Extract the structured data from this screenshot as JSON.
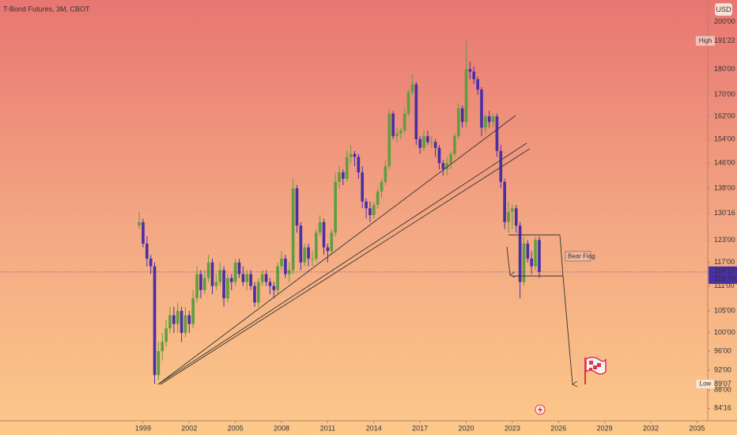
{
  "chart_data": {
    "type": "candlestick",
    "title": "T-Bond Futures, 3M, CBOT",
    "currency": "USD",
    "annotation": "Bear Flag",
    "log_scale": true,
    "colors": {
      "up": "#5f9e3f",
      "down": "#4a2ea6"
    },
    "xlim": [
      1989.7,
      2035.7
    ],
    "xticks": [
      1999,
      2002,
      2005,
      2008,
      2011,
      2014,
      2017,
      2020,
      2023,
      2026,
      2029,
      2032,
      2035
    ],
    "ylim": [
      82.2,
      210
    ],
    "yticks": [
      {
        "value": 200,
        "label": "200'00"
      },
      {
        "value": 180,
        "label": "180'00"
      },
      {
        "value": 170,
        "label": "170'00"
      },
      {
        "value": 162,
        "label": "162'00"
      },
      {
        "value": 154,
        "label": "154'00"
      },
      {
        "value": 146,
        "label": "146'00"
      },
      {
        "value": 138,
        "label": "138'00"
      },
      {
        "value": 130.5,
        "label": "130'16"
      },
      {
        "value": 123,
        "label": "123'00"
      },
      {
        "value": 117,
        "label": "117'00"
      },
      {
        "value": 111,
        "label": "111'00"
      },
      {
        "value": 105,
        "label": "105'00"
      },
      {
        "value": 100,
        "label": "100'00"
      },
      {
        "value": 96,
        "label": "96'00"
      },
      {
        "value": 92,
        "label": "92'00"
      },
      {
        "value": 88,
        "label": "88'00"
      },
      {
        "value": 84.5,
        "label": "84'16"
      }
    ],
    "high": {
      "label": "High",
      "price": {
        "value": 191.6875,
        "label": "191'22"
      }
    },
    "low": {
      "label": "Low",
      "price": {
        "value": 89.21875,
        "label": "89'07"
      }
    },
    "last": {
      "price": {
        "value": 114.53125,
        "label": "114'17"
      },
      "countdown": "11d 7h"
    },
    "x": [
      1998.75,
      1999,
      1999.25,
      1999.5,
      1999.75,
      2000,
      2000.25,
      2000.5,
      2000.75,
      2001,
      2001.25,
      2001.5,
      2001.75,
      2002,
      2002.25,
      2002.5,
      2002.75,
      2003,
      2003.25,
      2003.5,
      2003.75,
      2004,
      2004.25,
      2004.5,
      2004.75,
      2005,
      2005.25,
      2005.5,
      2005.75,
      2006,
      2006.25,
      2006.5,
      2006.75,
      2007,
      2007.25,
      2007.5,
      2007.75,
      2008,
      2008.25,
      2008.5,
      2008.75,
      2009,
      2009.25,
      2009.5,
      2009.75,
      2010,
      2010.25,
      2010.5,
      2010.75,
      2011,
      2011.25,
      2011.5,
      2011.75,
      2012,
      2012.25,
      2012.5,
      2012.75,
      2013,
      2013.25,
      2013.5,
      2013.75,
      2014,
      2014.25,
      2014.5,
      2014.75,
      2015,
      2015.25,
      2015.5,
      2015.75,
      2016,
      2016.25,
      2016.5,
      2016.75,
      2017,
      2017.25,
      2017.5,
      2017.75,
      2018,
      2018.25,
      2018.5,
      2018.75,
      2019,
      2019.25,
      2019.5,
      2019.75,
      2020,
      2020.25,
      2020.5,
      2020.75,
      2021,
      2021.25,
      2021.5,
      2021.75,
      2022,
      2022.25,
      2022.5,
      2022.75,
      2023,
      2023.25,
      2023.5,
      2023.75,
      2024,
      2024.25,
      2024.5,
      2024.75
    ],
    "ohlc": [
      [
        127,
        131,
        126,
        128
      ],
      [
        128,
        129,
        121,
        122
      ],
      [
        122,
        124,
        116,
        118
      ],
      [
        118,
        119,
        114,
        116
      ],
      [
        116,
        117,
        89.21875,
        91
      ],
      [
        91,
        98,
        90,
        96
      ],
      [
        96,
        100,
        94,
        98
      ],
      [
        98,
        103,
        97,
        101
      ],
      [
        101,
        106,
        100,
        104
      ],
      [
        104,
        106,
        100,
        102
      ],
      [
        102,
        107,
        100,
        105
      ],
      [
        105,
        106,
        98,
        100
      ],
      [
        100,
        106,
        99,
        104
      ],
      [
        104,
        105,
        100,
        102
      ],
      [
        102,
        110,
        101,
        108
      ],
      [
        108,
        116,
        107,
        114
      ],
      [
        114,
        115,
        108,
        110
      ],
      [
        110,
        115,
        109,
        113
      ],
      [
        113,
        119,
        112,
        117
      ],
      [
        117,
        118,
        109,
        111
      ],
      [
        111,
        114,
        110,
        112
      ],
      [
        112,
        117,
        111,
        115
      ],
      [
        115,
        116,
        106,
        108
      ],
      [
        108,
        114,
        107,
        113
      ],
      [
        113,
        114,
        110,
        112
      ],
      [
        112,
        118,
        111,
        117
      ],
      [
        117,
        118,
        113,
        114
      ],
      [
        114,
        116,
        111,
        112
      ],
      [
        112,
        115,
        110,
        114
      ],
      [
        114,
        115,
        110,
        111
      ],
      [
        111,
        112,
        106,
        107
      ],
      [
        107,
        113,
        106,
        112
      ],
      [
        112,
        115,
        111,
        114
      ],
      [
        114,
        115,
        111,
        112
      ],
      [
        112,
        113,
        109,
        111
      ],
      [
        111,
        112,
        108,
        110
      ],
      [
        110,
        117,
        109,
        116
      ],
      [
        116,
        120,
        115,
        118
      ],
      [
        118,
        119,
        113,
        114
      ],
      [
        114,
        117,
        112,
        115
      ],
      [
        115,
        141,
        114,
        138
      ],
      [
        138,
        139,
        125,
        127
      ],
      [
        127,
        128,
        115,
        117
      ],
      [
        117,
        122,
        116,
        121
      ],
      [
        121,
        122,
        116,
        118
      ],
      [
        118,
        120,
        116,
        118
      ],
      [
        118,
        126,
        117,
        125
      ],
      [
        125,
        130,
        124,
        128
      ],
      [
        128,
        129,
        119,
        121
      ],
      [
        121,
        122,
        117,
        120
      ],
      [
        120,
        126,
        119,
        125
      ],
      [
        125,
        143,
        124,
        140
      ],
      [
        140,
        145,
        138,
        143
      ],
      [
        143,
        144,
        139,
        141
      ],
      [
        141,
        150,
        140,
        148
      ],
      [
        148,
        152,
        146,
        149
      ],
      [
        149,
        150,
        145,
        148
      ],
      [
        148,
        149,
        141,
        143
      ],
      [
        143,
        145,
        132,
        134
      ],
      [
        134,
        135,
        129,
        132
      ],
      [
        132,
        134,
        128,
        130
      ],
      [
        130,
        134,
        129,
        133
      ],
      [
        133,
        138,
        132,
        137
      ],
      [
        137,
        141,
        135,
        140
      ],
      [
        140,
        147,
        139,
        145
      ],
      [
        145,
        165,
        144,
        163
      ],
      [
        163,
        164,
        154,
        155
      ],
      [
        155,
        158,
        153,
        156
      ],
      [
        156,
        158,
        154,
        157
      ],
      [
        157,
        165,
        156,
        163
      ],
      [
        163,
        172,
        162,
        171
      ],
      [
        171,
        178,
        170,
        174
      ],
      [
        174,
        175,
        152,
        154
      ],
      [
        154,
        155,
        149,
        151
      ],
      [
        151,
        157,
        150,
        155
      ],
      [
        155,
        157,
        152,
        153
      ],
      [
        153,
        155,
        151,
        153
      ],
      [
        153,
        154,
        148,
        151
      ],
      [
        151,
        152,
        144,
        146
      ],
      [
        146,
        147,
        142,
        144
      ],
      [
        144,
        148,
        142,
        146
      ],
      [
        146,
        150,
        144,
        149
      ],
      [
        149,
        156,
        148,
        155
      ],
      [
        155,
        167,
        154,
        165
      ],
      [
        165,
        166,
        158,
        160
      ],
      [
        160,
        191.6875,
        158,
        180
      ],
      [
        180,
        183,
        176,
        179
      ],
      [
        179,
        181,
        174,
        176
      ],
      [
        176,
        177,
        170,
        172
      ],
      [
        172,
        173,
        155,
        158
      ],
      [
        158,
        163,
        156,
        162
      ],
      [
        162,
        164,
        158,
        160
      ],
      [
        160,
        163,
        158,
        162
      ],
      [
        162,
        163,
        148,
        150
      ],
      [
        150,
        152,
        138,
        140
      ],
      [
        140,
        141,
        126,
        128
      ],
      [
        128,
        134,
        125,
        131
      ],
      [
        131,
        133,
        126,
        132
      ],
      [
        132,
        133,
        125,
        127
      ],
      [
        127,
        128,
        108,
        112
      ],
      [
        112,
        124,
        111,
        122
      ],
      [
        122,
        123,
        117,
        118
      ],
      [
        118,
        120,
        114,
        116
      ],
      [
        116,
        124,
        115,
        123
      ],
      [
        123,
        124,
        113,
        114.53125
      ]
    ]
  }
}
